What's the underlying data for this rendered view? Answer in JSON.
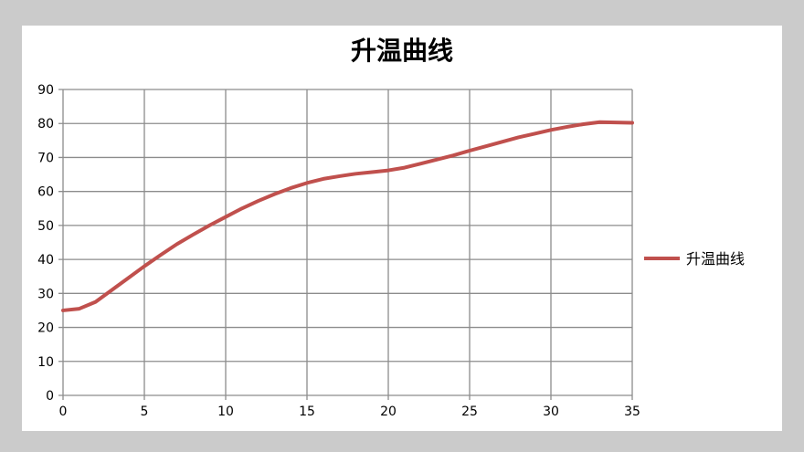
{
  "chart_data": {
    "type": "line",
    "title": "升温曲线",
    "xlabel": "",
    "ylabel": "",
    "xlim": [
      0,
      35
    ],
    "ylim": [
      0,
      90
    ],
    "xticks": [
      0,
      5,
      10,
      15,
      20,
      25,
      30,
      35
    ],
    "yticks": [
      0,
      10,
      20,
      30,
      40,
      50,
      60,
      70,
      80,
      90
    ],
    "grid": true,
    "legend_position": "right",
    "series": [
      {
        "name": "升温曲线",
        "color": "#c0504d",
        "x": [
          0,
          1,
          2,
          3,
          4,
          5,
          6,
          7,
          8,
          9,
          10,
          11,
          12,
          13,
          14,
          15,
          16,
          17,
          18,
          19,
          20,
          21,
          22,
          23,
          24,
          25,
          26,
          27,
          28,
          29,
          30,
          31,
          32,
          33,
          34,
          35
        ],
        "y": [
          25,
          25.5,
          27.5,
          31,
          34.5,
          38,
          41.3,
          44.5,
          47.3,
          50,
          52.5,
          55,
          57.2,
          59.2,
          61,
          62.5,
          63.7,
          64.5,
          65.2,
          65.7,
          66.2,
          67,
          68.2,
          69.4,
          70.6,
          72,
          73.3,
          74.6,
          75.9,
          77,
          78.1,
          79,
          79.8,
          80.4,
          80.3,
          80.2
        ]
      }
    ]
  }
}
